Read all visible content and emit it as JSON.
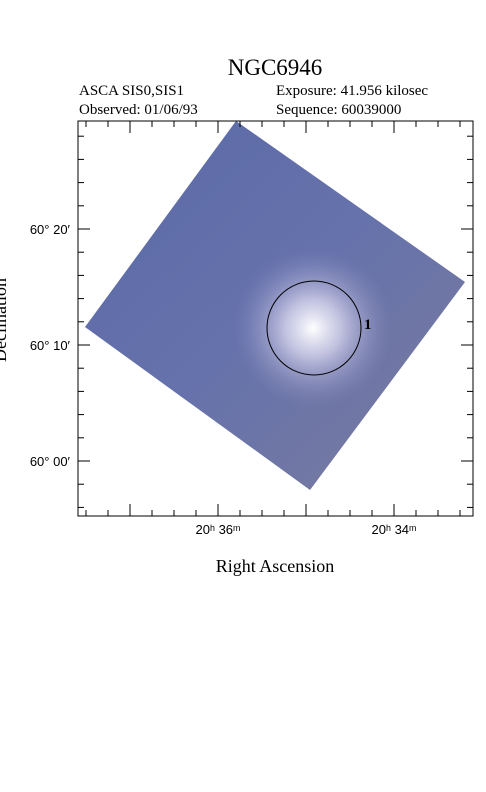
{
  "header": {
    "title": "NGC6946",
    "instrument": "ASCA SIS0,SIS1",
    "exposure": "Exposure: 41.956 kilosec",
    "observed": "Observed: 01/06/93",
    "sequence": "Sequence: 60039000"
  },
  "y_axis": {
    "label": "Declination",
    "ticks": [
      "60° 20′",
      "60° 10′",
      "60° 00′"
    ]
  },
  "x_axis": {
    "label": "Right Ascension",
    "ticks": [
      "20ʰ 36ᵐ",
      "20ʰ 34ᵐ"
    ]
  },
  "sources": [
    {
      "label": "1"
    }
  ]
}
